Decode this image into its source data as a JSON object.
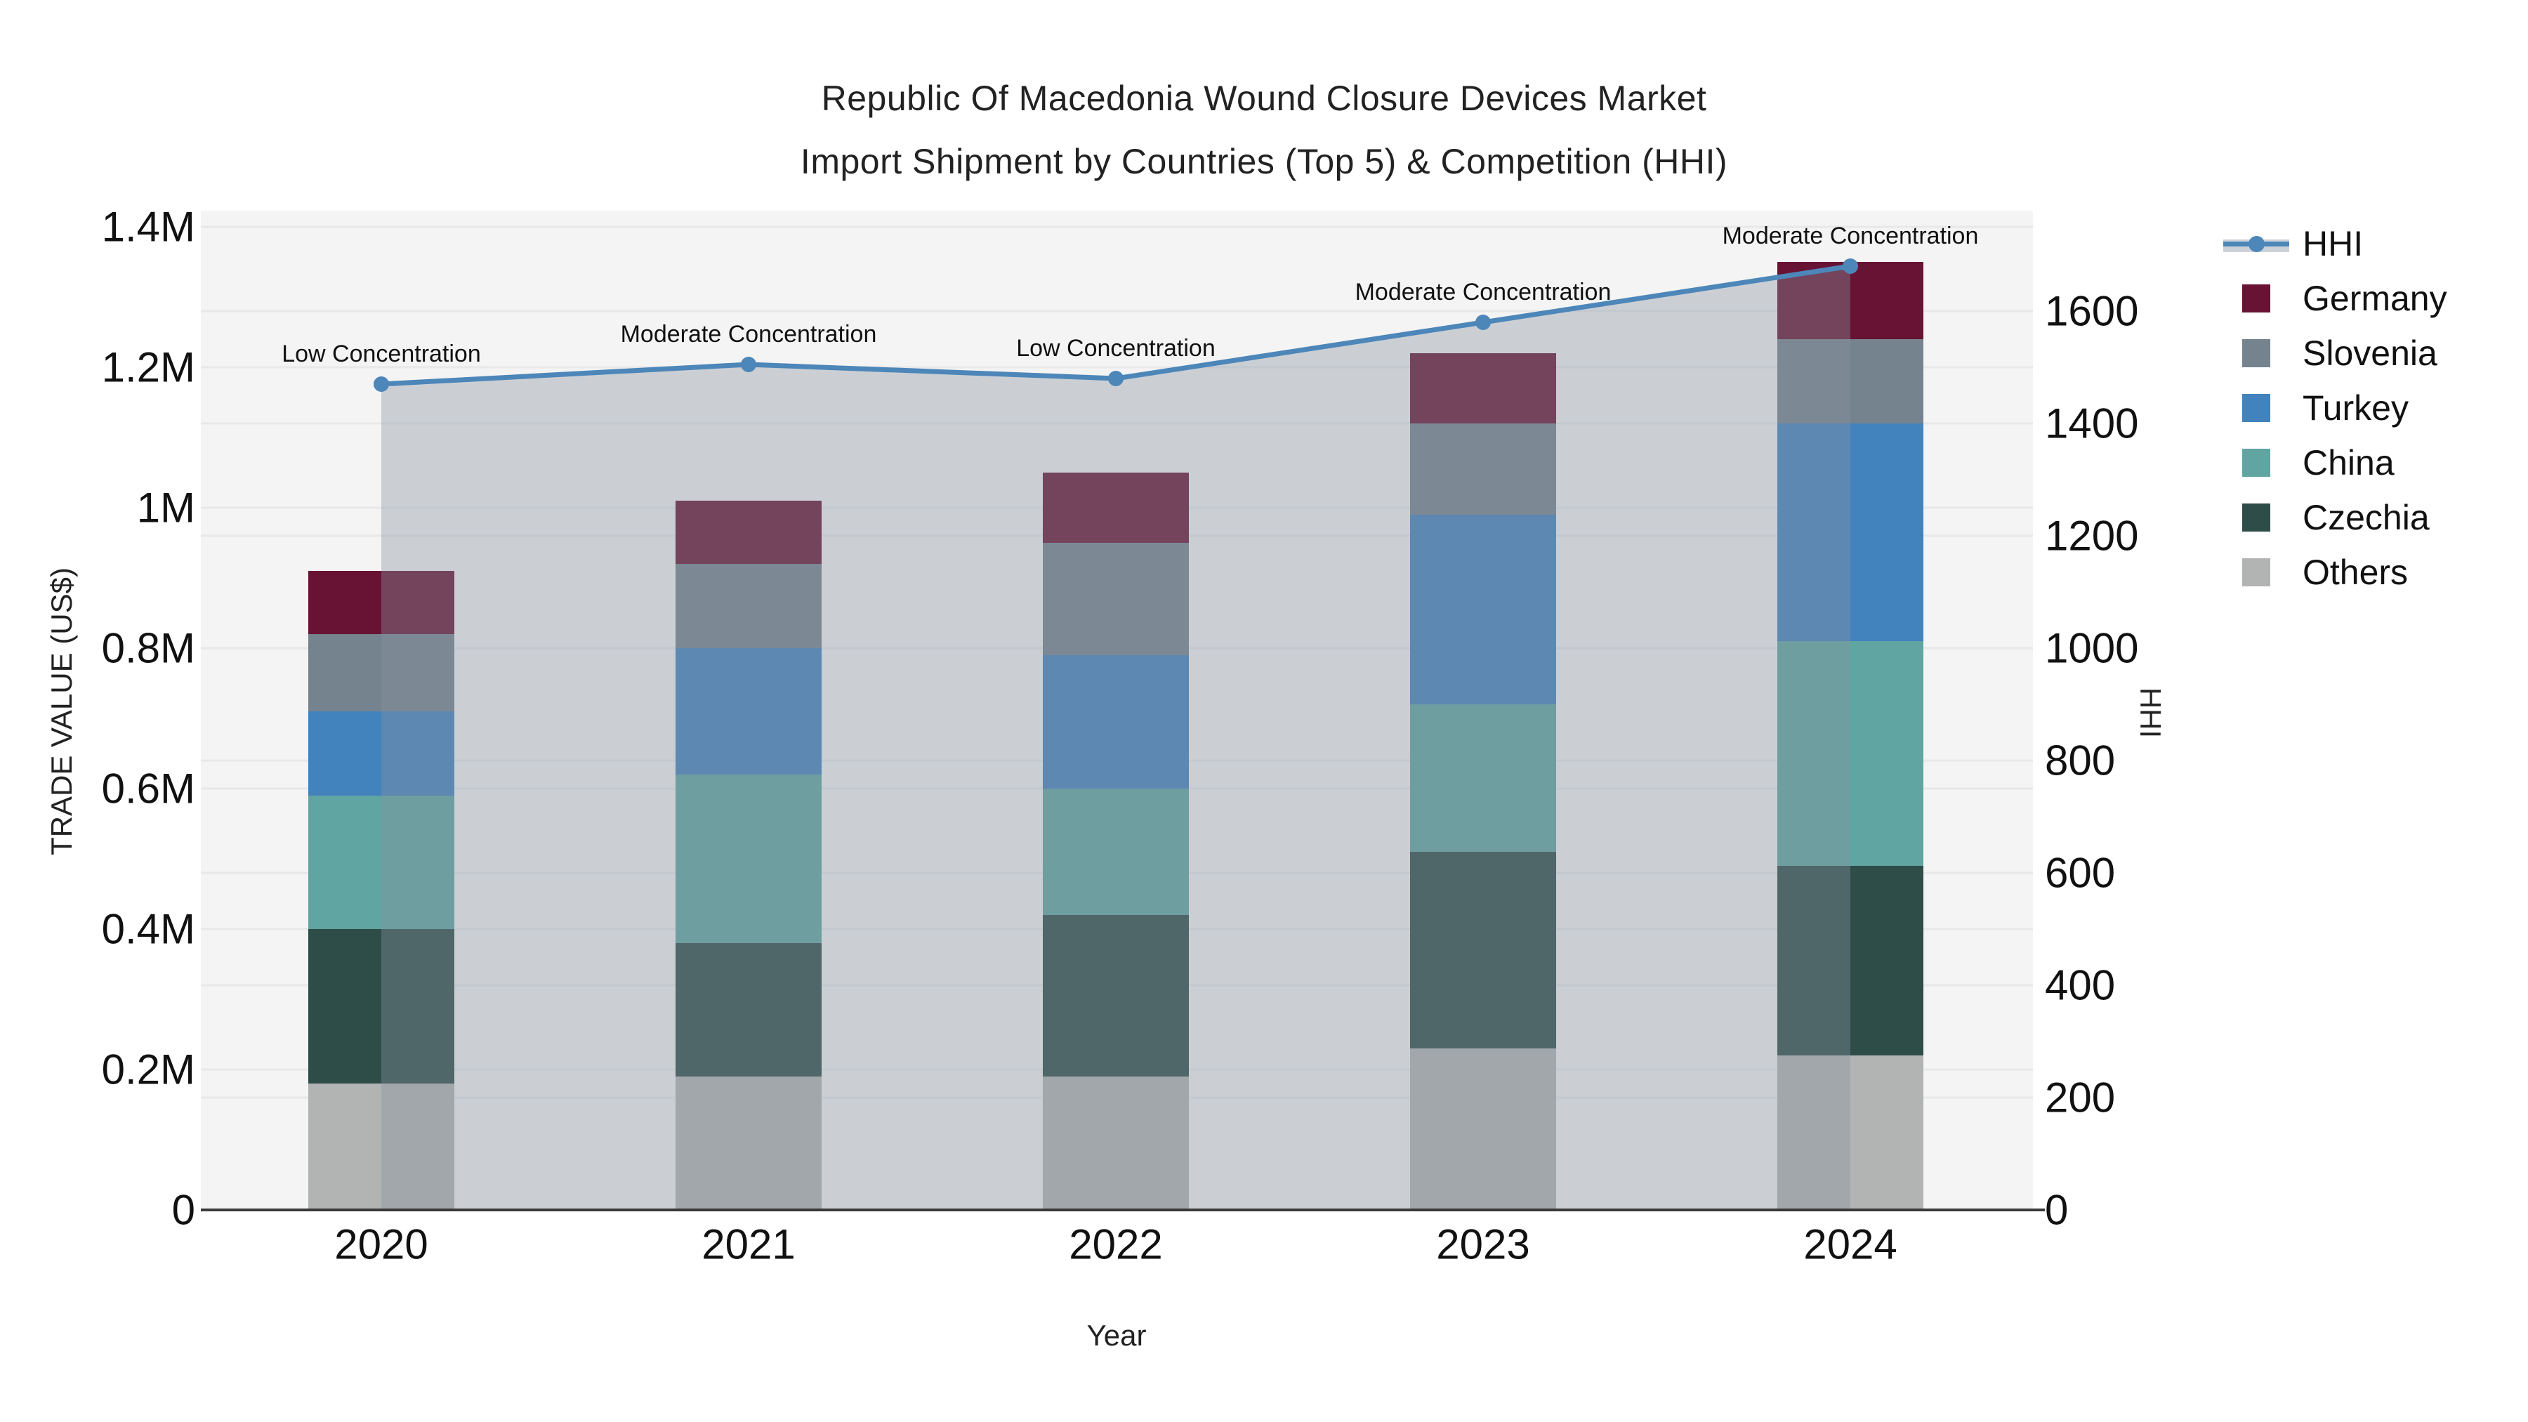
{
  "title": {
    "line1": "Republic Of Macedonia Wound Closure Devices Market",
    "line2": "Import Shipment by Countries (Top 5) & Competition (HHI)"
  },
  "chart_data": {
    "type": "stacked-bar+line",
    "title": "Republic Of Macedonia Wound Closure Devices Market Import Shipment by Countries (Top 5) & Competition (HHI)",
    "categories": [
      "2020",
      "2021",
      "2022",
      "2023",
      "2024"
    ],
    "xlabel": "Year",
    "y_left": {
      "title": "TRADE VALUE (US$)",
      "unit": "millions US$",
      "tick_labels": [
        "0",
        "0.2M",
        "0.4M",
        "0.6M",
        "0.8M",
        "1M",
        "1.2M",
        "1.4M"
      ],
      "tick_values": [
        0,
        0.2,
        0.4,
        0.6,
        0.8,
        1.0,
        1.2,
        1.4
      ],
      "range": [
        0,
        1.4
      ]
    },
    "y_right": {
      "title": "HHI",
      "tick_labels": [
        "0",
        "200",
        "400",
        "600",
        "800",
        "1000",
        "1200",
        "1400",
        "1600"
      ],
      "tick_values": [
        0,
        200,
        400,
        600,
        800,
        1000,
        1200,
        1400,
        1600
      ]
    },
    "bar_unit": "M US$",
    "bar_series": [
      {
        "name": "Others",
        "color": "#b2b4b3",
        "values": [
          0.18,
          0.19,
          0.19,
          0.23,
          0.22
        ]
      },
      {
        "name": "Czechia",
        "color": "#2e4c48",
        "values": [
          0.22,
          0.19,
          0.23,
          0.28,
          0.27
        ]
      },
      {
        "name": "China",
        "color": "#60a5a2",
        "values": [
          0.19,
          0.24,
          0.18,
          0.21,
          0.32
        ]
      },
      {
        "name": "Turkey",
        "color": "#4282bd",
        "values": [
          0.12,
          0.18,
          0.19,
          0.27,
          0.31
        ]
      },
      {
        "name": "Slovenia",
        "color": "#75838f",
        "values": [
          0.11,
          0.12,
          0.16,
          0.13,
          0.12
        ]
      },
      {
        "name": "Germany",
        "color": "#681333",
        "values": [
          0.09,
          0.09,
          0.1,
          0.1,
          0.11
        ]
      }
    ],
    "line_series": {
      "name": "HHI",
      "color": "#4d86b8",
      "marker": "circle",
      "area_fill": "rgba(138,146,161,0.38)",
      "values": [
        1470,
        1505,
        1480,
        1580,
        1680
      ]
    },
    "annotations": [
      "Low Concentration",
      "Moderate Concentration",
      "Low Concentration",
      "Moderate Concentration",
      "Moderate Concentration"
    ],
    "legend_order": [
      "HHI",
      "Germany",
      "Slovenia",
      "Turkey",
      "China",
      "Czechia",
      "Others"
    ],
    "plot_bg": "#f4f4f4",
    "gridline_color": "#e7e8ea",
    "axis_line_color": "#3a3a3a",
    "legend_band_color": "#ccd2da"
  }
}
